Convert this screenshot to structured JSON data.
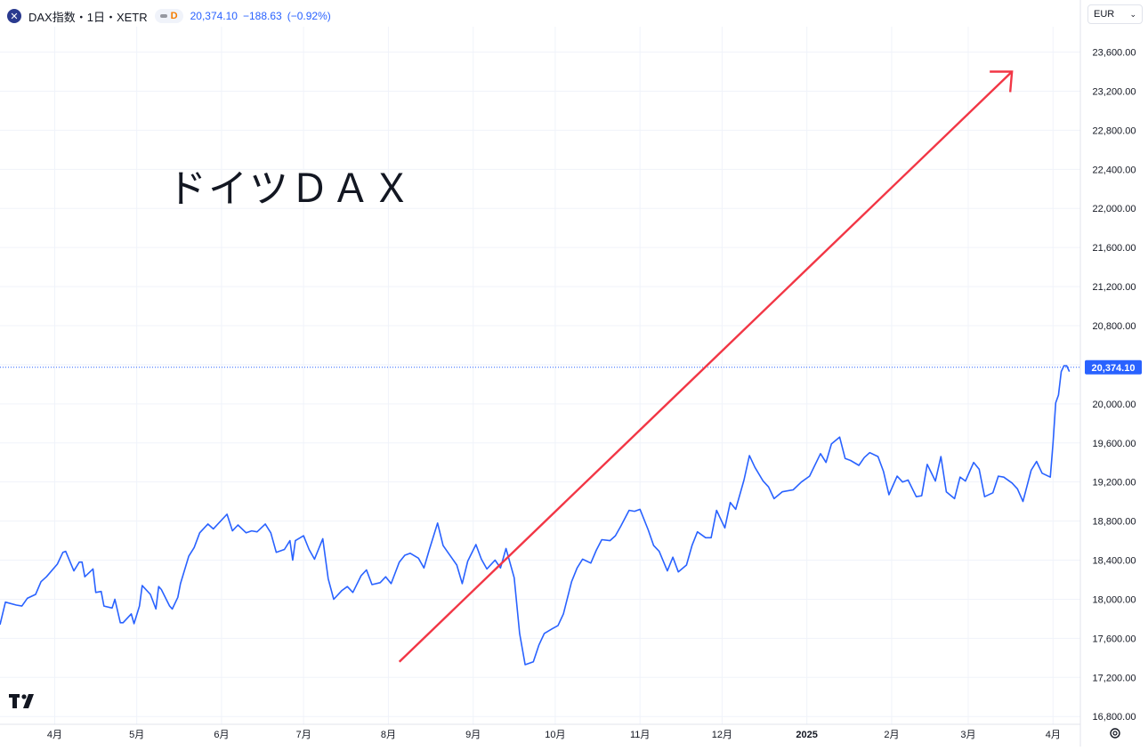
{
  "header": {
    "symbol_icon": "close-x-icon",
    "symbol_title": "DAX指数・1日・XETR",
    "badge_label": "D",
    "last": "20,374.10",
    "change": "−188.63",
    "change_pct": "(−0.92%)"
  },
  "currency": {
    "value": "EUR"
  },
  "overlay": {
    "text": "ドイツＤＡＸ"
  },
  "price_label": "20,374.10",
  "colors": {
    "line": "#2962ff",
    "arrow": "#f23645",
    "grid": "#f0f3fa",
    "axis_text": "#131722"
  },
  "chart_data": {
    "type": "line",
    "title": "",
    "xlabel": "",
    "ylabel": "",
    "ylim": [
      16720,
      23860
    ],
    "x_range": [
      "2024-03-12",
      "2025-04-11"
    ],
    "x_ticks": [
      {
        "label": "4月",
        "date": "2024-04-01"
      },
      {
        "label": "5月",
        "date": "2024-05-01"
      },
      {
        "label": "6月",
        "date": "2024-06-01"
      },
      {
        "label": "7月",
        "date": "2024-07-01"
      },
      {
        "label": "8月",
        "date": "2024-08-01"
      },
      {
        "label": "9月",
        "date": "2024-09-01"
      },
      {
        "label": "10月",
        "date": "2024-10-01"
      },
      {
        "label": "11月",
        "date": "2024-11-01"
      },
      {
        "label": "12月",
        "date": "2024-12-01"
      },
      {
        "label": "2025",
        "date": "2025-01-01"
      },
      {
        "label": "2月",
        "date": "2025-02-01"
      },
      {
        "label": "3月",
        "date": "2025-03-01"
      },
      {
        "label": "4月",
        "date": "2025-04-01"
      }
    ],
    "y_ticks": [
      {
        "label": "16,800.00",
        "value": 16800
      },
      {
        "label": "17,200.00",
        "value": 17200
      },
      {
        "label": "17,600.00",
        "value": 17600
      },
      {
        "label": "18,000.00",
        "value": 18000
      },
      {
        "label": "18,400.00",
        "value": 18400
      },
      {
        "label": "18,800.00",
        "value": 18800
      },
      {
        "label": "19,200.00",
        "value": 19200
      },
      {
        "label": "19,600.00",
        "value": 19600
      },
      {
        "label": "20,000.00",
        "value": 20000
      },
      {
        "label": "20,400.00",
        "value": 20400
      },
      {
        "label": "20,800.00",
        "value": 20800
      },
      {
        "label": "21,200.00",
        "value": 21200
      },
      {
        "label": "21,600.00",
        "value": 21600
      },
      {
        "label": "22,000.00",
        "value": 22000
      },
      {
        "label": "22,400.00",
        "value": 22400
      },
      {
        "label": "22,800.00",
        "value": 22800
      },
      {
        "label": "23,200.00",
        "value": 23200
      },
      {
        "label": "23,600.00",
        "value": 23600
      }
    ],
    "last_value": 20374.1,
    "series": [
      {
        "values": [
          [
            "2024-03-12",
            17740
          ],
          [
            "2024-03-14",
            17970
          ],
          [
            "2024-03-18",
            17940
          ],
          [
            "2024-03-20",
            17930
          ],
          [
            "2024-03-22",
            18010
          ],
          [
            "2024-03-25",
            18050
          ],
          [
            "2024-03-27",
            18180
          ],
          [
            "2024-03-29",
            18230
          ],
          [
            "2024-04-02",
            18360
          ],
          [
            "2024-04-04",
            18480
          ],
          [
            "2024-04-05",
            18490
          ],
          [
            "2024-04-08",
            18290
          ],
          [
            "2024-04-10",
            18380
          ],
          [
            "2024-04-11",
            18380
          ],
          [
            "2024-04-12",
            18230
          ],
          [
            "2024-04-15",
            18310
          ],
          [
            "2024-04-16",
            18070
          ],
          [
            "2024-04-18",
            18080
          ],
          [
            "2024-04-19",
            17930
          ],
          [
            "2024-04-22",
            17910
          ],
          [
            "2024-04-23",
            18000
          ],
          [
            "2024-04-25",
            17760
          ],
          [
            "2024-04-26",
            17760
          ],
          [
            "2024-04-29",
            17850
          ],
          [
            "2024-04-30",
            17750
          ],
          [
            "2024-05-02",
            17930
          ],
          [
            "2024-05-03",
            18140
          ],
          [
            "2024-05-06",
            18050
          ],
          [
            "2024-05-08",
            17900
          ],
          [
            "2024-05-09",
            18130
          ],
          [
            "2024-05-10",
            18100
          ],
          [
            "2024-05-13",
            17930
          ],
          [
            "2024-05-14",
            17900
          ],
          [
            "2024-05-16",
            18020
          ],
          [
            "2024-05-17",
            18160
          ],
          [
            "2024-05-20",
            18440
          ],
          [
            "2024-05-22",
            18530
          ],
          [
            "2024-05-24",
            18680
          ],
          [
            "2024-05-27",
            18770
          ],
          [
            "2024-05-29",
            18720
          ],
          [
            "2024-06-03",
            18870
          ],
          [
            "2024-06-05",
            18700
          ],
          [
            "2024-06-07",
            18760
          ],
          [
            "2024-06-10",
            18680
          ],
          [
            "2024-06-12",
            18700
          ],
          [
            "2024-06-14",
            18690
          ],
          [
            "2024-06-17",
            18770
          ],
          [
            "2024-06-19",
            18680
          ],
          [
            "2024-06-21",
            18480
          ],
          [
            "2024-06-24",
            18510
          ],
          [
            "2024-06-26",
            18600
          ],
          [
            "2024-06-27",
            18400
          ],
          [
            "2024-06-28",
            18600
          ],
          [
            "2024-07-01",
            18650
          ],
          [
            "2024-07-03",
            18510
          ],
          [
            "2024-07-05",
            18410
          ],
          [
            "2024-07-08",
            18620
          ],
          [
            "2024-07-10",
            18210
          ],
          [
            "2024-07-12",
            18000
          ],
          [
            "2024-07-15",
            18090
          ],
          [
            "2024-07-17",
            18130
          ],
          [
            "2024-07-19",
            18070
          ],
          [
            "2024-07-22",
            18240
          ],
          [
            "2024-07-24",
            18300
          ],
          [
            "2024-07-26",
            18150
          ],
          [
            "2024-07-29",
            18170
          ],
          [
            "2024-07-31",
            18230
          ],
          [
            "2024-08-02",
            18160
          ],
          [
            "2024-08-05",
            18380
          ],
          [
            "2024-08-07",
            18450
          ],
          [
            "2024-08-09",
            18470
          ],
          [
            "2024-08-12",
            18420
          ],
          [
            "2024-08-14",
            18320
          ],
          [
            "2024-08-16",
            18510
          ],
          [
            "2024-08-19",
            18780
          ],
          [
            "2024-08-21",
            18550
          ],
          [
            "2024-08-23",
            18470
          ],
          [
            "2024-08-26",
            18350
          ],
          [
            "2024-08-28",
            18160
          ],
          [
            "2024-08-30",
            18390
          ],
          [
            "2024-09-02",
            18560
          ],
          [
            "2024-09-04",
            18410
          ],
          [
            "2024-09-06",
            18310
          ],
          [
            "2024-09-09",
            18400
          ],
          [
            "2024-09-11",
            18320
          ],
          [
            "2024-09-13",
            18520
          ],
          [
            "2024-09-16",
            18220
          ],
          [
            "2024-09-18",
            17650
          ],
          [
            "2024-09-20",
            17330
          ],
          [
            "2024-09-23",
            17360
          ],
          [
            "2024-09-25",
            17530
          ],
          [
            "2024-09-27",
            17650
          ],
          [
            "2024-09-30",
            17700
          ],
          [
            "2024-10-02",
            17730
          ],
          [
            "2024-10-04",
            17850
          ],
          [
            "2024-10-07",
            18180
          ],
          [
            "2024-10-09",
            18320
          ],
          [
            "2024-10-11",
            18410
          ],
          [
            "2024-10-14",
            18370
          ],
          [
            "2024-10-16",
            18500
          ],
          [
            "2024-10-18",
            18610
          ],
          [
            "2024-10-21",
            18600
          ],
          [
            "2024-10-23",
            18650
          ],
          [
            "2024-10-25",
            18750
          ],
          [
            "2024-10-28",
            18910
          ],
          [
            "2024-10-30",
            18900
          ],
          [
            "2024-11-01",
            18920
          ],
          [
            "2024-11-04",
            18710
          ],
          [
            "2024-11-06",
            18550
          ],
          [
            "2024-11-08",
            18490
          ],
          [
            "2024-11-11",
            18290
          ],
          [
            "2024-11-13",
            18430
          ],
          [
            "2024-11-15",
            18280
          ],
          [
            "2024-11-18",
            18350
          ],
          [
            "2024-11-20",
            18550
          ],
          [
            "2024-11-22",
            18690
          ],
          [
            "2024-11-25",
            18630
          ],
          [
            "2024-11-27",
            18630
          ],
          [
            "2024-11-29",
            18910
          ],
          [
            "2024-12-02",
            18730
          ],
          [
            "2024-12-04",
            18990
          ],
          [
            "2024-12-06",
            18920
          ],
          [
            "2024-12-09",
            19220
          ],
          [
            "2024-12-11",
            19470
          ],
          [
            "2024-12-13",
            19350
          ],
          [
            "2024-12-16",
            19210
          ],
          [
            "2024-12-18",
            19150
          ],
          [
            "2024-12-20",
            19030
          ],
          [
            "2024-12-23",
            19100
          ],
          [
            "2024-12-27",
            19120
          ],
          [
            "2024-12-30",
            19200
          ],
          [
            "2025-01-02",
            19260
          ],
          [
            "2025-01-06",
            19490
          ],
          [
            "2025-01-08",
            19400
          ],
          [
            "2025-01-10",
            19590
          ],
          [
            "2025-01-13",
            19660
          ],
          [
            "2025-01-15",
            19440
          ],
          [
            "2025-01-17",
            19420
          ],
          [
            "2025-01-20",
            19370
          ],
          [
            "2025-01-22",
            19450
          ],
          [
            "2025-01-24",
            19500
          ],
          [
            "2025-01-27",
            19460
          ],
          [
            "2025-01-29",
            19310
          ],
          [
            "2025-01-31",
            19070
          ],
          [
            "2025-02-03",
            19260
          ],
          [
            "2025-02-05",
            19200
          ],
          [
            "2025-02-07",
            19220
          ],
          [
            "2025-02-10",
            19050
          ],
          [
            "2025-02-12",
            19060
          ],
          [
            "2025-02-14",
            19380
          ],
          [
            "2025-02-17",
            19210
          ],
          [
            "2025-02-19",
            19460
          ],
          [
            "2025-02-21",
            19100
          ],
          [
            "2025-02-24",
            19030
          ],
          [
            "2025-02-26",
            19250
          ],
          [
            "2025-02-28",
            19210
          ],
          [
            "2025-03-03",
            19400
          ],
          [
            "2025-03-05",
            19330
          ],
          [
            "2025-03-07",
            19050
          ],
          [
            "2025-03-10",
            19090
          ],
          [
            "2025-03-12",
            19260
          ],
          [
            "2025-03-14",
            19250
          ],
          [
            "2025-03-17",
            19190
          ],
          [
            "2025-03-19",
            19130
          ],
          [
            "2025-03-21",
            19000
          ],
          [
            "2025-03-24",
            19320
          ],
          [
            "2025-03-26",
            19410
          ],
          [
            "2025-03-28",
            19290
          ],
          [
            "2025-03-31",
            19250
          ],
          [
            "2025-04-01",
            19600
          ],
          [
            "2025-04-02",
            20010
          ],
          [
            "2025-04-03",
            20090
          ],
          [
            "2025-04-04",
            20330
          ],
          [
            "2025-04-05",
            20390
          ],
          [
            "2025-04-06",
            20390
          ],
          [
            "2025-04-07",
            20330
          ]
        ]
      }
    ]
  }
}
